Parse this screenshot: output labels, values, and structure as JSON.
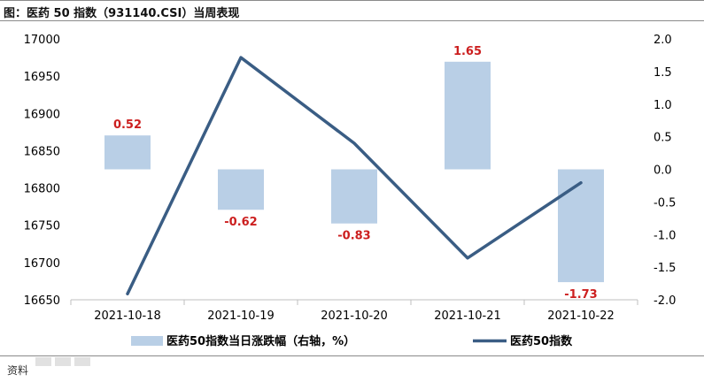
{
  "title": "图：医药 50 指数（931140.CSI）当周表现",
  "source_label": "资料",
  "chart_data": {
    "type": "bar",
    "categories": [
      "2021-10-18",
      "2021-10-19",
      "2021-10-20",
      "2021-10-21",
      "2021-10-22"
    ],
    "series": [
      {
        "name": "医药50指数当日涨跌幅（右轴，%）",
        "type": "bar",
        "axis": "right",
        "color": "#b9cfe6",
        "values": [
          0.52,
          -0.62,
          -0.83,
          1.65,
          -1.73
        ],
        "labels": [
          "0.52",
          "-0.62",
          "-0.83",
          "1.65",
          "-1.73"
        ]
      },
      {
        "name": "医药50指数",
        "type": "line",
        "axis": "left",
        "color": "#3a5d84",
        "values": [
          16658,
          16975,
          16860,
          16706,
          16807
        ]
      }
    ],
    "y_left": {
      "min": 16650,
      "max": 17000,
      "ticks": [
        17000,
        16950,
        16900,
        16850,
        16800,
        16750,
        16700,
        16650
      ]
    },
    "y_right": {
      "min": -2.0,
      "max": 2.0,
      "ticks": [
        "2.0",
        "1.5",
        "1.0",
        "0.5",
        "0.0",
        "-0.5",
        "-1.0",
        "-1.5",
        "-2.0"
      ]
    },
    "legend_position": "bottom",
    "grid": false
  }
}
